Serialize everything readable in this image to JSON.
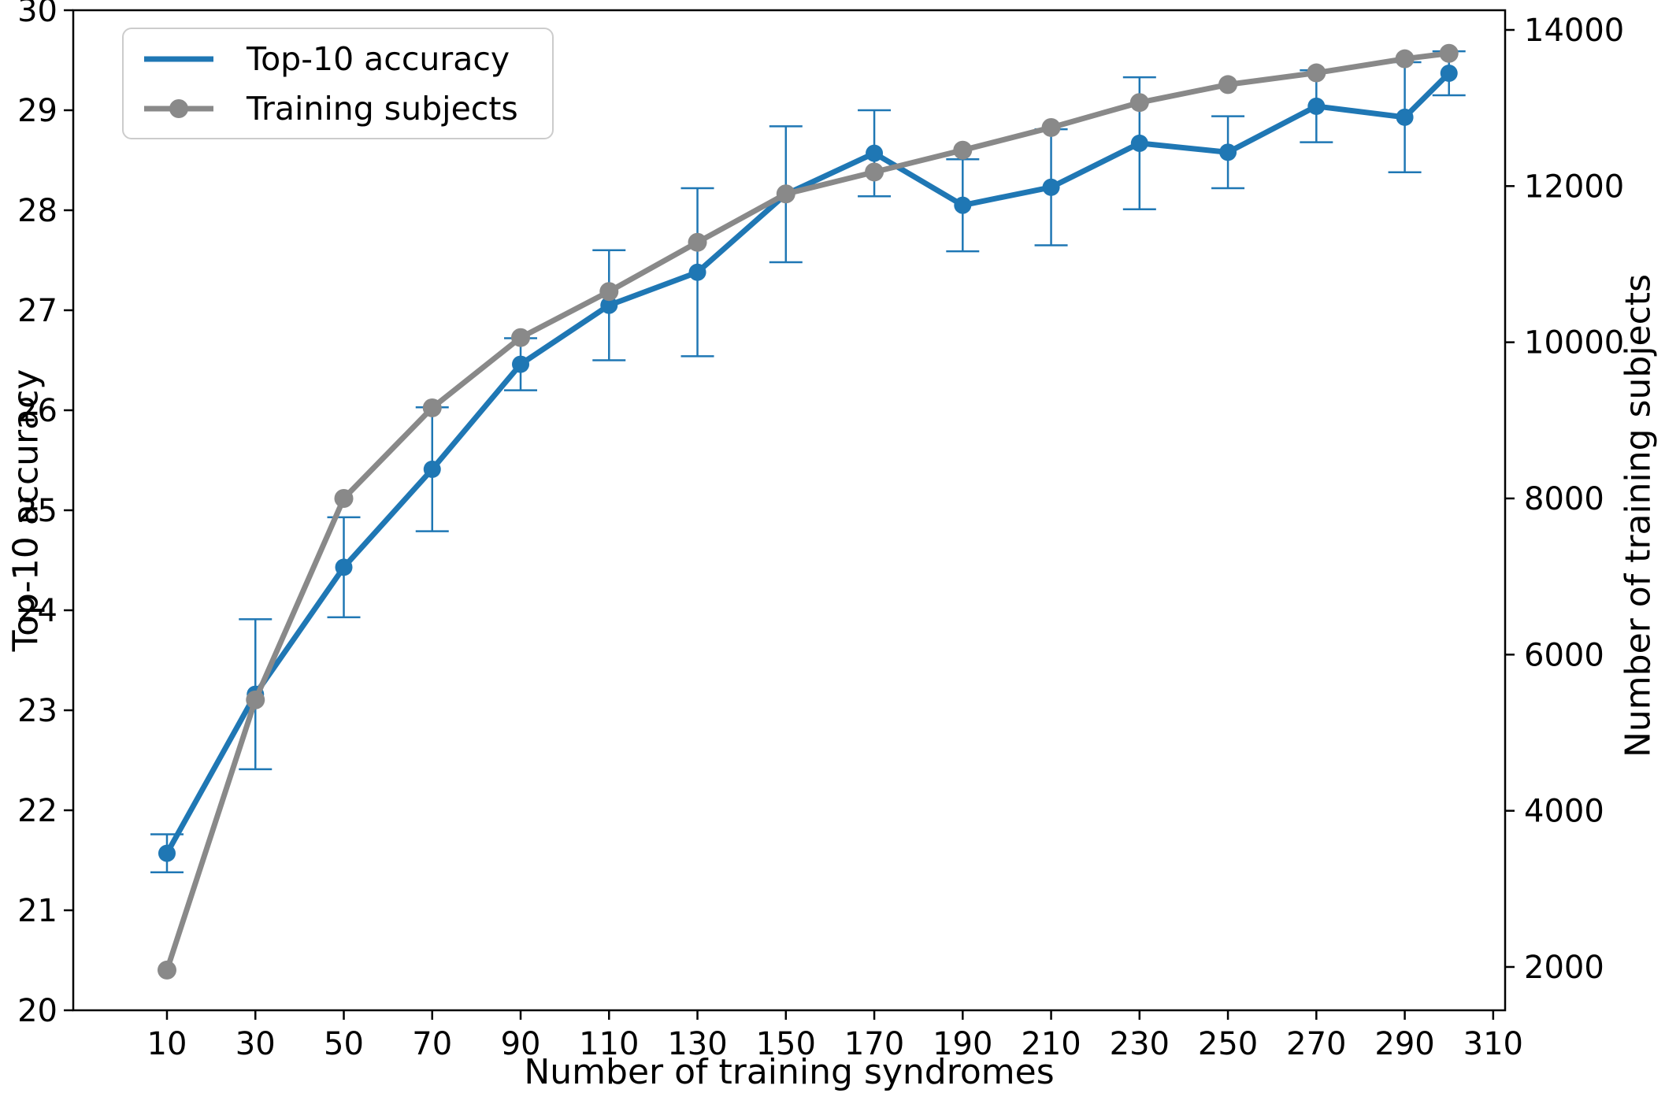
{
  "figure": {
    "background": "#ffffff",
    "text_color": "#000000"
  },
  "chart_data": {
    "type": "line",
    "title": "",
    "xlabel": "Number of training syndromes",
    "ylabel_left": "Top-10 accuracy",
    "ylabel_right": "Number of training subjects",
    "grid": false,
    "x": [
      10,
      30,
      50,
      70,
      90,
      110,
      130,
      150,
      170,
      190,
      210,
      230,
      250,
      270,
      290,
      300
    ],
    "series": [
      {
        "name": "Top-10 accuracy",
        "axis": "left",
        "color": "#1f77b4",
        "marker": "circle",
        "values": [
          21.57,
          23.16,
          24.43,
          25.41,
          26.46,
          27.05,
          27.38,
          28.16,
          28.57,
          28.05,
          28.23,
          28.67,
          28.58,
          29.04,
          28.93,
          29.37
        ],
        "error": [
          0.19,
          0.75,
          0.5,
          0.62,
          0.26,
          0.55,
          0.84,
          0.68,
          0.43,
          0.46,
          0.58,
          0.66,
          0.36,
          0.36,
          0.55,
          0.22
        ]
      },
      {
        "name": "Training subjects",
        "axis": "right",
        "color": "#898989",
        "marker": "circle",
        "values": [
          1960,
          5420,
          8000,
          9160,
          10060,
          10650,
          11280,
          11900,
          12180,
          12460,
          12750,
          13070,
          13300,
          13450,
          13630,
          13700
        ]
      }
    ],
    "x_ticks": [
      10,
      30,
      50,
      70,
      90,
      110,
      130,
      150,
      170,
      190,
      210,
      230,
      250,
      270,
      290,
      310
    ],
    "y_left_ticks": [
      20,
      21,
      22,
      23,
      24,
      25,
      26,
      27,
      28,
      29,
      30
    ],
    "y_right_ticks": [
      2000,
      4000,
      6000,
      8000,
      10000,
      12000,
      14000
    ],
    "x_range": [
      -11.2,
      312.7
    ],
    "y_left_range": [
      20,
      30
    ],
    "y_right_range": [
      1445,
      14252
    ],
    "legend": {
      "position": "upper left",
      "entries": [
        "Top-10 accuracy",
        "Training subjects"
      ]
    }
  }
}
